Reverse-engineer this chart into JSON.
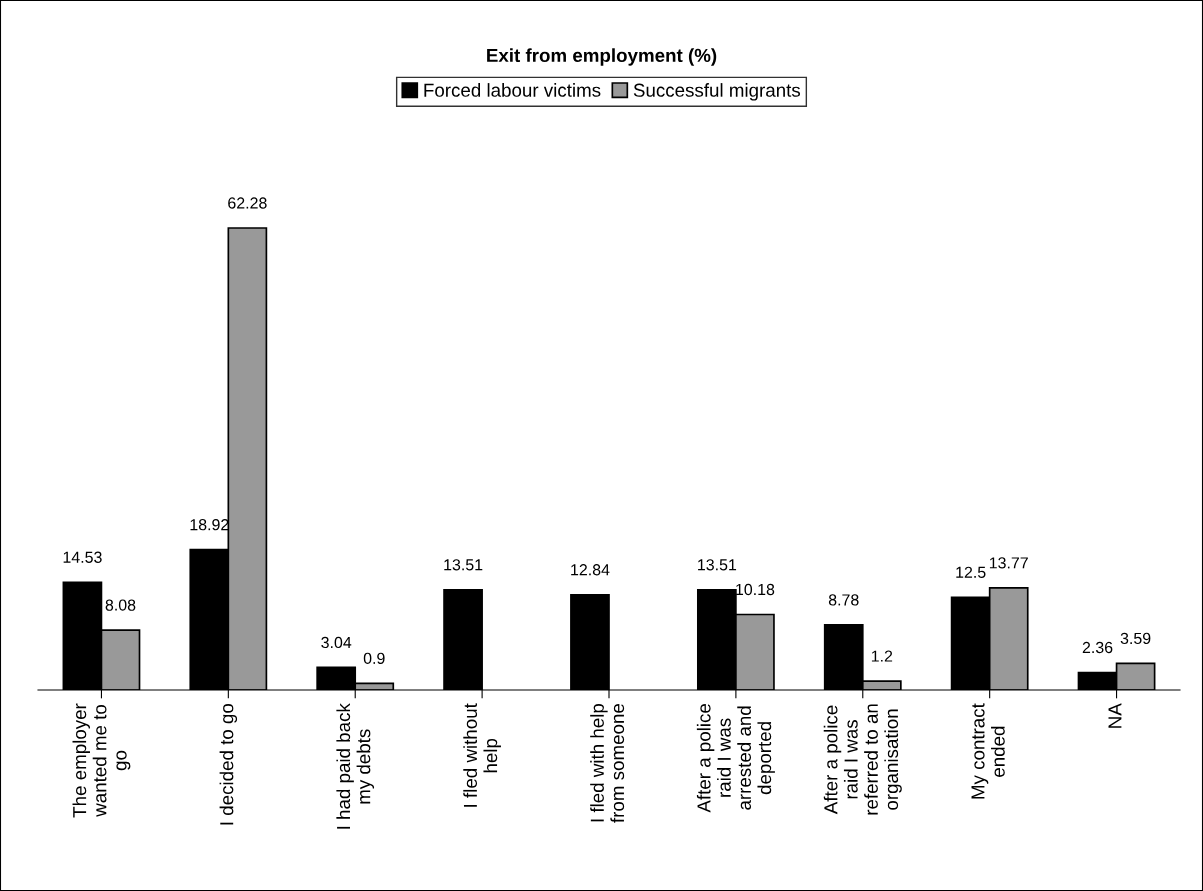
{
  "chart_data": {
    "type": "bar",
    "title": "Exit from employment (%)",
    "categories": [
      "The employer\nwanted me to\ngo",
      "I decided to go",
      "I had paid back\nmy debts",
      "I fled without\nhelp",
      "I fled with help\nfrom someone",
      "After a police\nraid I was\narrested and\ndeported",
      "After a police\nraid I was\nreferred to an\norganisation",
      "My contract\nended",
      "NA"
    ],
    "series": [
      {
        "name": "Forced labour victims",
        "color": "#000000",
        "values": [
          14.53,
          18.92,
          3.04,
          13.51,
          12.84,
          13.51,
          8.78,
          12.5,
          2.36
        ]
      },
      {
        "name": "Successful migrants",
        "color": "#999999",
        "values": [
          8.08,
          62.28,
          0.9,
          null,
          null,
          10.18,
          1.2,
          13.77,
          3.59
        ]
      }
    ],
    "data_labels": true,
    "legend": "top",
    "grid": false
  }
}
